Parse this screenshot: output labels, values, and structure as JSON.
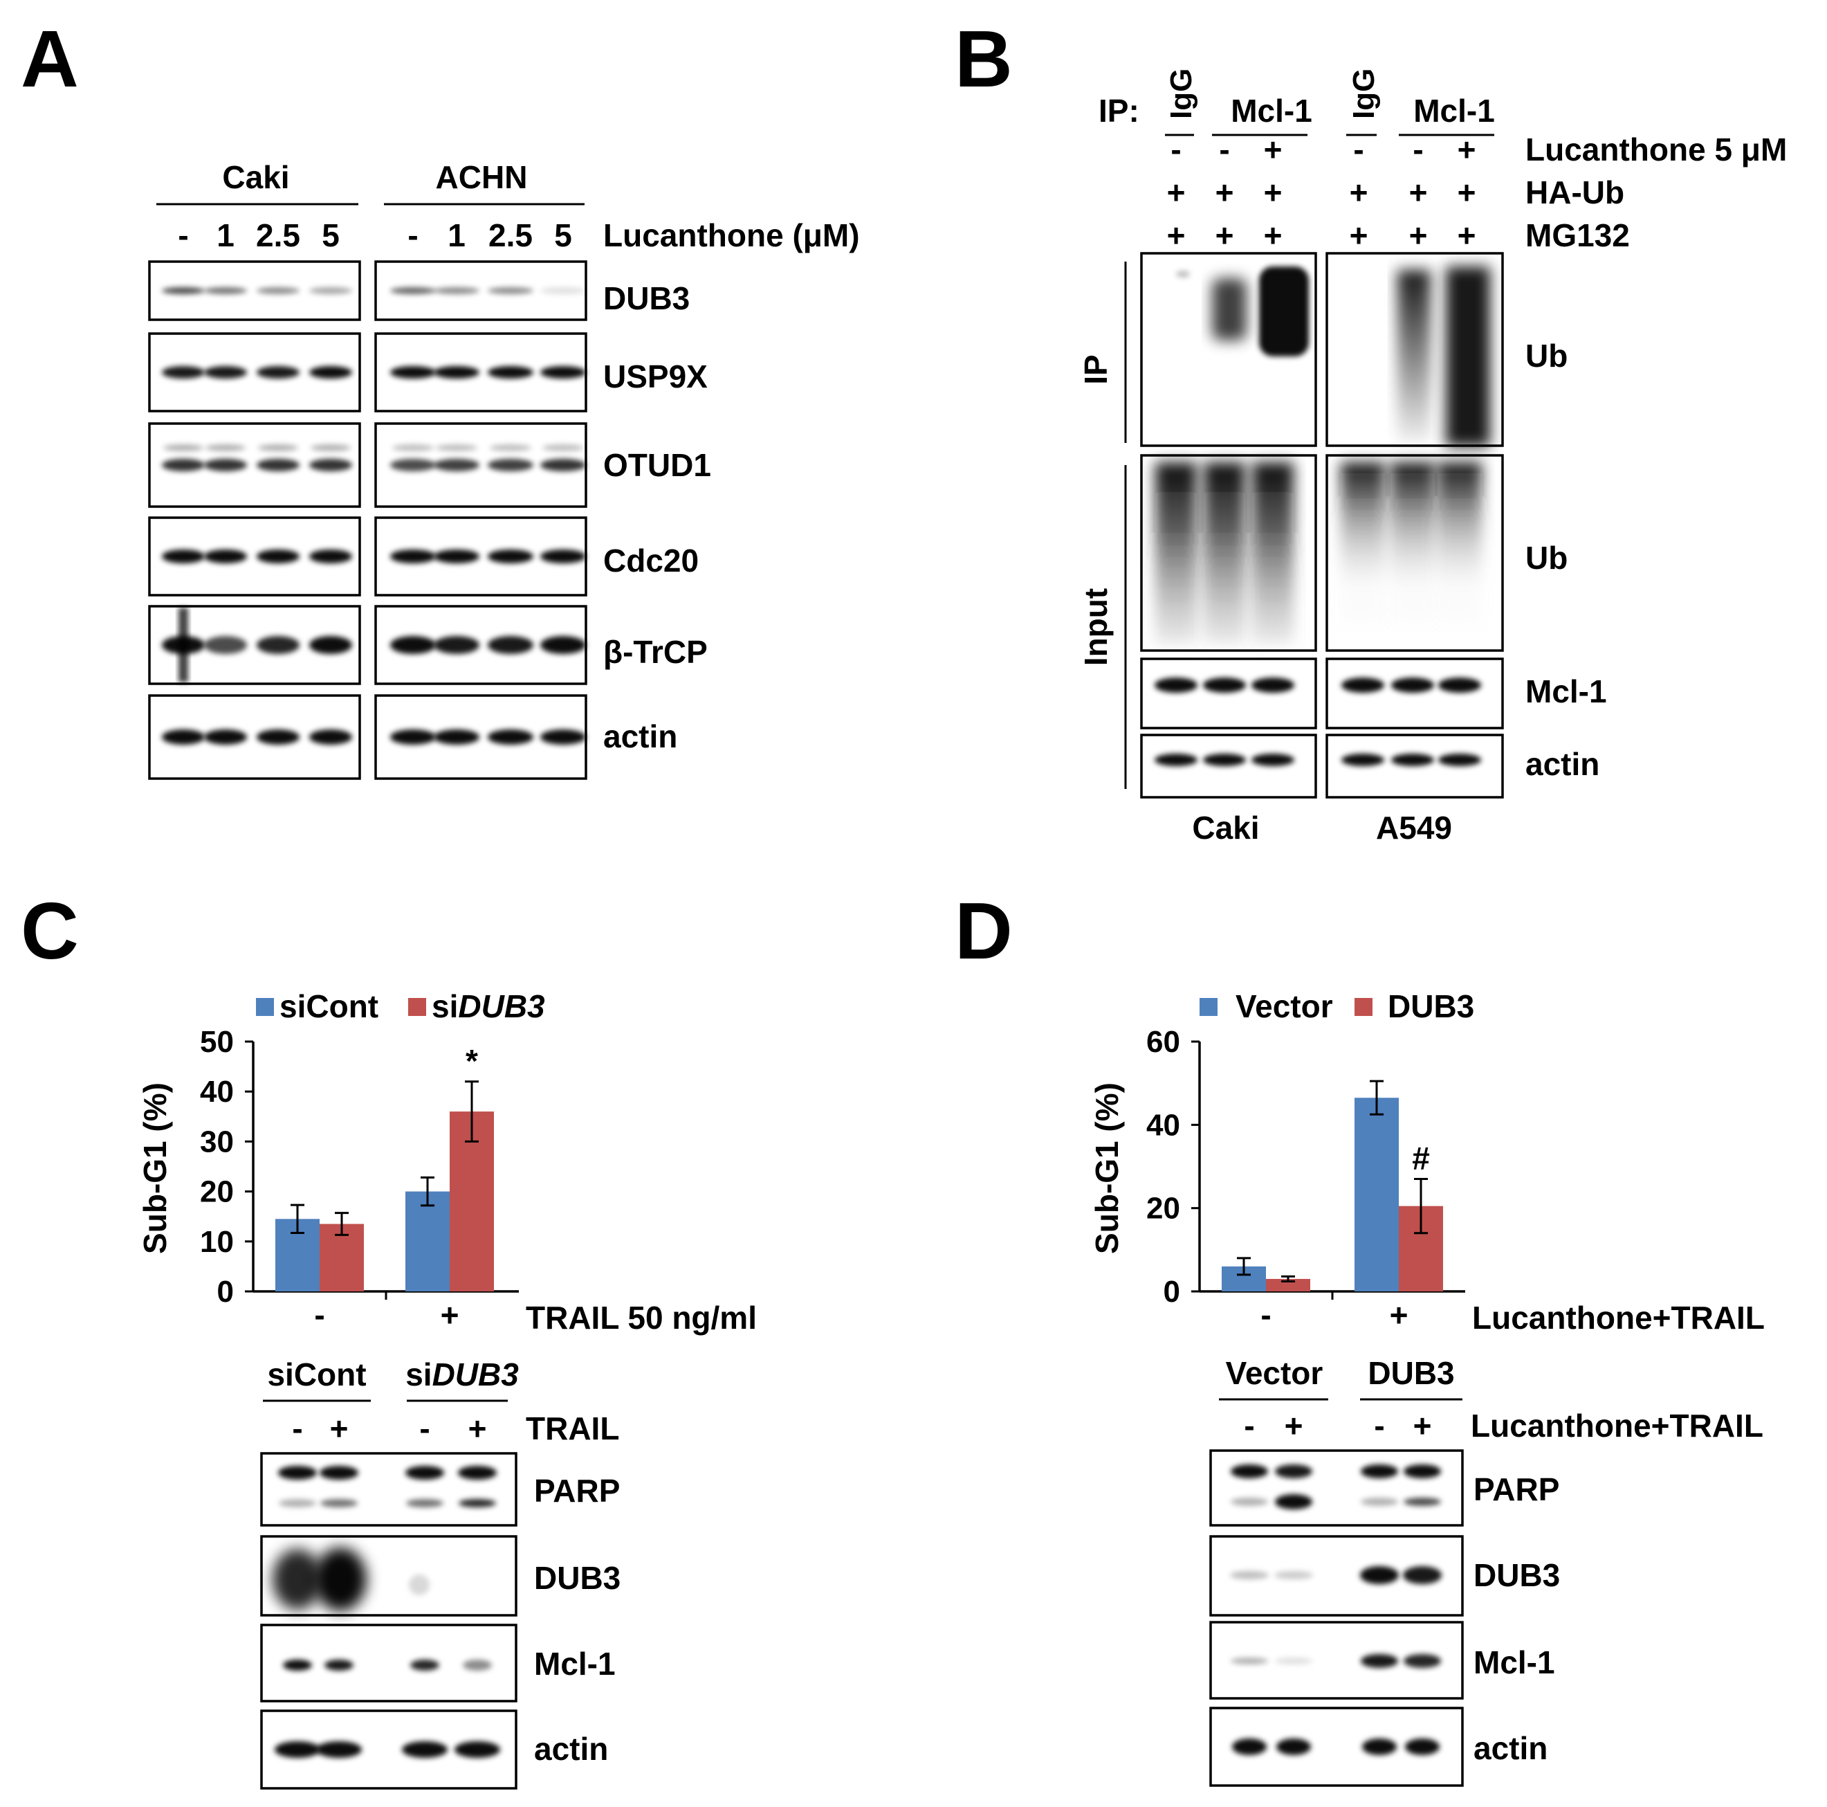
{
  "panels": [
    "A",
    "B",
    "C",
    "D"
  ],
  "panel_a": {
    "groups": [
      "Caki",
      "ACHN"
    ],
    "lanes": [
      "-",
      "1",
      "2.5",
      "5"
    ],
    "treatment": "Lucanthone (μM)",
    "blots": [
      "DUB3",
      "USP9X",
      "OTUD1",
      "Cdc20",
      "β-TrCP",
      "actin"
    ]
  },
  "panel_b": {
    "ip_label": "IP:",
    "ip_groups": [
      "IgG",
      "Mcl-1",
      "IgG",
      "Mcl-1"
    ],
    "conditions": [
      {
        "name": "Lucanthone 5 μM",
        "marks": [
          "-",
          "-",
          "+",
          "-",
          "-",
          "+"
        ]
      },
      {
        "name": "HA-Ub",
        "marks": [
          "+",
          "+",
          "+",
          "+",
          "+",
          "+"
        ]
      },
      {
        "name": "MG132",
        "marks": [
          "+",
          "+",
          "+",
          "+",
          "+",
          "+"
        ]
      }
    ],
    "side_ip": "IP",
    "side_input": "Input",
    "blots": [
      "Ub",
      "Ub",
      "Mcl-1",
      "actin"
    ],
    "cells": [
      "Caki",
      "A549"
    ]
  },
  "panel_c": {
    "chart_data": {
      "type": "bar",
      "categories": [
        "-",
        "+"
      ],
      "xlabel": "TRAIL 50 ng/ml",
      "ylabel": "Sub-G1 (%)",
      "ylim": [
        0,
        50
      ],
      "yticks": [
        0,
        10,
        20,
        30,
        40,
        50
      ],
      "series": [
        {
          "name": "siCont",
          "values": [
            14.5,
            20.0
          ],
          "errors": [
            2.8,
            2.8
          ],
          "color": "#4f81bd"
        },
        {
          "name": "siDUB3",
          "values": [
            13.5,
            36.0
          ],
          "errors": [
            2.2,
            6.0
          ],
          "color": "#c0504d"
        }
      ],
      "annotations": [
        {
          "text": "*",
          "series": 1,
          "category": 1
        }
      ]
    },
    "legend_prefix": [
      "si",
      "si"
    ],
    "legend_suffix": [
      "Cont",
      "DUB3"
    ],
    "blot_groups_prefix": [
      "si",
      "si"
    ],
    "blot_groups_suffix": [
      "Cont",
      "DUB3"
    ],
    "lanes": [
      "-",
      "+",
      "-",
      "+"
    ],
    "treatment": "TRAIL",
    "blots": [
      "PARP",
      "DUB3",
      "Mcl-1",
      "actin"
    ]
  },
  "panel_d": {
    "chart_data": {
      "type": "bar",
      "categories": [
        "-",
        "+"
      ],
      "xlabel": "Lucanthone+TRAIL",
      "ylabel": "Sub-G1 (%)",
      "ylim": [
        0,
        60
      ],
      "yticks": [
        0,
        20,
        40,
        60
      ],
      "series": [
        {
          "name": "Vector",
          "values": [
            6.0,
            46.5
          ],
          "errors": [
            2.0,
            4.0
          ],
          "color": "#4f81bd"
        },
        {
          "name": "DUB3",
          "values": [
            3.0,
            20.5
          ],
          "errors": [
            0.6,
            6.5
          ],
          "color": "#c0504d"
        }
      ],
      "annotations": [
        {
          "text": "#",
          "series": 1,
          "category": 1
        }
      ]
    },
    "blot_groups": [
      "Vector",
      "DUB3"
    ],
    "lanes": [
      "-",
      "+",
      "-",
      "+"
    ],
    "treatment": "Lucanthone+TRAIL",
    "blots": [
      "PARP",
      "DUB3",
      "Mcl-1",
      "actin"
    ]
  }
}
